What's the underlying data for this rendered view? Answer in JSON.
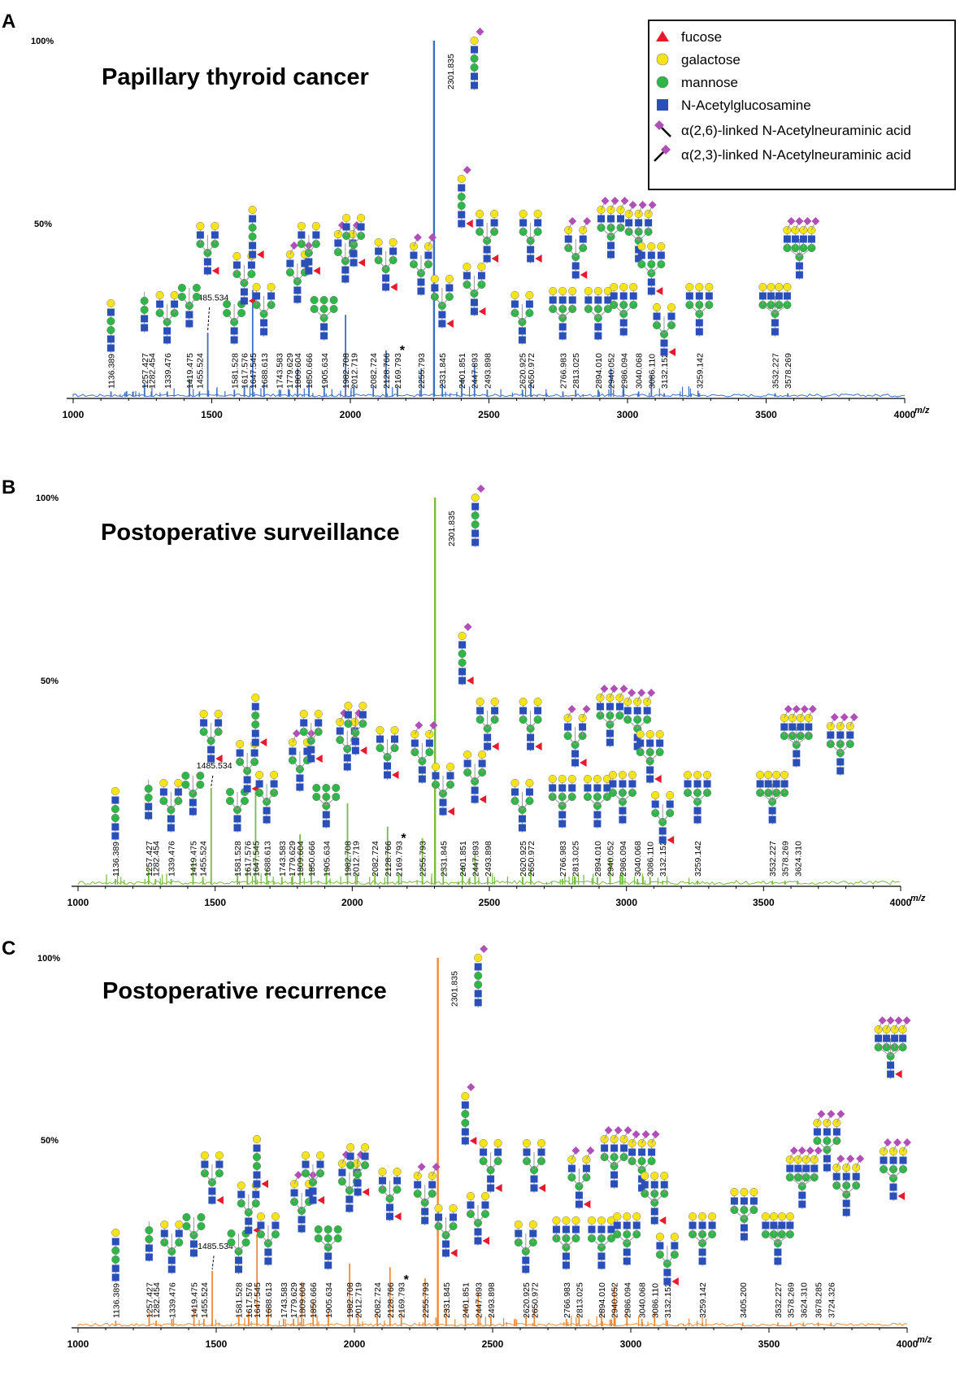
{
  "legend": {
    "items": [
      {
        "shape": "triangle",
        "color": "#e8192c",
        "label": "fucose"
      },
      {
        "shape": "circle",
        "color": "#f7e418",
        "label": "galactose"
      },
      {
        "shape": "circle",
        "color": "#2fb548",
        "label": "mannose"
      },
      {
        "shape": "square",
        "color": "#2b4fb8",
        "label": "N-Acetylglucosamine"
      },
      {
        "shape": "diamond26",
        "color": "#b14fb8",
        "label": "α(2,6)-linked N-Acetylneuraminic acid"
      },
      {
        "shape": "diamond23",
        "color": "#b14fb8",
        "label": "α(2,3)-linked N-Acetylneuraminic acid"
      }
    ]
  },
  "colors": {
    "panel_a": "#3d6fc4",
    "panel_b": "#76bd3f",
    "panel_c": "#f08a36",
    "fucose": "#e8192c",
    "galactose": "#f7e418",
    "mannose": "#2fb548",
    "glcnac": "#2b4fb8",
    "neuac": "#b14fb8"
  },
  "chart_data": [
    {
      "type": "line",
      "panel": "A",
      "title": "Papillary thyroid cancer",
      "xlabel": "m/z",
      "ylabel": "",
      "xlim": [
        1000,
        4000
      ],
      "ylim": [
        0,
        100
      ],
      "x_ticks": [
        "1000",
        "1500",
        "2000",
        "2500",
        "3000",
        "3500",
        "4000"
      ],
      "y_ticks": [
        "100%",
        "50%"
      ],
      "peaks": [
        {
          "mz": "1136.389",
          "x": 1136.389,
          "y": 1.5
        },
        {
          "mz": "1257.427",
          "x": 1257.427,
          "y": 4
        },
        {
          "mz": "1282.454",
          "x": 1282.454,
          "y": 1.5
        },
        {
          "mz": "1339.476",
          "x": 1339.476,
          "y": 1.5
        },
        {
          "mz": "1419.475",
          "x": 1419.475,
          "y": 5
        },
        {
          "mz": "1455.524",
          "x": 1455.524,
          "y": 1.5
        },
        {
          "mz": "1485.534",
          "x": 1485.534,
          "y": 18
        },
        {
          "mz": "1581.528",
          "x": 1581.528,
          "y": 2
        },
        {
          "mz": "1617.576",
          "x": 1617.576,
          "y": 3
        },
        {
          "mz": "1647.545",
          "x": 1647.545,
          "y": 30
        },
        {
          "mz": "1688.613",
          "x": 1688.613,
          "y": 4
        },
        {
          "mz": "1743.583",
          "x": 1743.583,
          "y": 2
        },
        {
          "mz": "1779.629",
          "x": 1779.629,
          "y": 2
        },
        {
          "mz": "1809.604",
          "x": 1809.604,
          "y": 8
        },
        {
          "mz": "1850.666",
          "x": 1850.666,
          "y": 4
        },
        {
          "mz": "1905.634",
          "x": 1905.634,
          "y": 3
        },
        {
          "mz": "1982.708",
          "x": 1982.708,
          "y": 23
        },
        {
          "mz": "2012.719",
          "x": 2012.719,
          "y": 3
        },
        {
          "mz": "2082.724",
          "x": 2082.724,
          "y": 3
        },
        {
          "mz": "2128.766",
          "x": 2128.766,
          "y": 13
        },
        {
          "mz": "2169.793",
          "x": 2169.793,
          "y": 3
        },
        {
          "mz": "2255.793",
          "x": 2255.793,
          "y": 8
        },
        {
          "mz": "2301.835",
          "x": 2301.835,
          "y": 100
        },
        {
          "mz": "2331.845",
          "x": 2331.845,
          "y": 4
        },
        {
          "mz": "2401.851",
          "x": 2401.851,
          "y": 5
        },
        {
          "mz": "2447.893",
          "x": 2447.893,
          "y": 9
        },
        {
          "mz": "2493.898",
          "x": 2493.898,
          "y": 2
        },
        {
          "mz": "2620.925",
          "x": 2620.925,
          "y": 2
        },
        {
          "mz": "2650.972",
          "x": 2650.972,
          "y": 4
        },
        {
          "mz": "2766.983",
          "x": 2766.983,
          "y": 1.5
        },
        {
          "mz": "2813.025",
          "x": 2813.025,
          "y": 2
        },
        {
          "mz": "2894.010",
          "x": 2894.01,
          "y": 2
        },
        {
          "mz": "2940.052",
          "x": 2940.052,
          "y": 8
        },
        {
          "mz": "2986.094",
          "x": 2986.094,
          "y": 3
        },
        {
          "mz": "3040.068",
          "x": 3040.068,
          "y": 1.5
        },
        {
          "mz": "3086.110",
          "x": 3086.11,
          "y": 6
        },
        {
          "mz": "3132.152",
          "x": 3132.152,
          "y": 1
        },
        {
          "mz": "3259.142",
          "x": 3259.142,
          "y": 1
        },
        {
          "mz": "3532.227",
          "x": 3532.227,
          "y": 1
        },
        {
          "mz": "3578.269",
          "x": 3578.269,
          "y": 1
        }
      ],
      "annotations": [
        {
          "text": "*",
          "x": 2190
        }
      ]
    },
    {
      "type": "line",
      "panel": "B",
      "title": "Postoperative surveillance",
      "xlabel": "m/z",
      "ylabel": "",
      "xlim": [
        1000,
        4000
      ],
      "ylim": [
        0,
        100
      ],
      "x_ticks": [
        "1000",
        "1500",
        "2000",
        "2500",
        "3000",
        "3500",
        "4000"
      ],
      "y_ticks": [
        "100%",
        "50%"
      ],
      "peaks": [
        {
          "mz": "1136.389",
          "x": 1136.389,
          "y": 1.5
        },
        {
          "mz": "1257.427",
          "x": 1257.427,
          "y": 4
        },
        {
          "mz": "1282.454",
          "x": 1282.454,
          "y": 1.5
        },
        {
          "mz": "1339.476",
          "x": 1339.476,
          "y": 1.5
        },
        {
          "mz": "1419.475",
          "x": 1419.475,
          "y": 6
        },
        {
          "mz": "1455.524",
          "x": 1455.524,
          "y": 2
        },
        {
          "mz": "1485.534",
          "x": 1485.534,
          "y": 25
        },
        {
          "mz": "1581.528",
          "x": 1581.528,
          "y": 3
        },
        {
          "mz": "1617.576",
          "x": 1617.576,
          "y": 4
        },
        {
          "mz": "1647.545",
          "x": 1647.545,
          "y": 24
        },
        {
          "mz": "1688.613",
          "x": 1688.613,
          "y": 4
        },
        {
          "mz": "1743.583",
          "x": 1743.583,
          "y": 2
        },
        {
          "mz": "1779.629",
          "x": 1779.629,
          "y": 2
        },
        {
          "mz": "1809.604",
          "x": 1809.604,
          "y": 13
        },
        {
          "mz": "1850.666",
          "x": 1850.666,
          "y": 5
        },
        {
          "mz": "1905.634",
          "x": 1905.634,
          "y": 4
        },
        {
          "mz": "1982.708",
          "x": 1982.708,
          "y": 21
        },
        {
          "mz": "2012.719",
          "x": 2012.719,
          "y": 3
        },
        {
          "mz": "2082.724",
          "x": 2082.724,
          "y": 3
        },
        {
          "mz": "2128.766",
          "x": 2128.766,
          "y": 15
        },
        {
          "mz": "2169.793",
          "x": 2169.793,
          "y": 3
        },
        {
          "mz": "2255.793",
          "x": 2255.793,
          "y": 12
        },
        {
          "mz": "2301.835",
          "x": 2301.835,
          "y": 100
        },
        {
          "mz": "2331.845",
          "x": 2331.845,
          "y": 4
        },
        {
          "mz": "2401.851",
          "x": 2401.851,
          "y": 5
        },
        {
          "mz": "2447.893",
          "x": 2447.893,
          "y": 8
        },
        {
          "mz": "2493.898",
          "x": 2493.898,
          "y": 2
        },
        {
          "mz": "2620.925",
          "x": 2620.925,
          "y": 2
        },
        {
          "mz": "2650.972",
          "x": 2650.972,
          "y": 4
        },
        {
          "mz": "2766.983",
          "x": 2766.983,
          "y": 1.5
        },
        {
          "mz": "2813.025",
          "x": 2813.025,
          "y": 2
        },
        {
          "mz": "2894.010",
          "x": 2894.01,
          "y": 2
        },
        {
          "mz": "2940.052",
          "x": 2940.052,
          "y": 7
        },
        {
          "mz": "2986.094",
          "x": 2986.094,
          "y": 3
        },
        {
          "mz": "3040.068",
          "x": 3040.068,
          "y": 1.5
        },
        {
          "mz": "3086.110",
          "x": 3086.11,
          "y": 2
        },
        {
          "mz": "3132.152",
          "x": 3132.152,
          "y": 1
        },
        {
          "mz": "3259.142",
          "x": 3259.142,
          "y": 1
        },
        {
          "mz": "3532.227",
          "x": 3532.227,
          "y": 1
        },
        {
          "mz": "3578.269",
          "x": 3578.269,
          "y": 1
        },
        {
          "mz": "3624.310",
          "x": 3624.31,
          "y": 1
        }
      ],
      "annotations": [
        {
          "text": "*",
          "x": 2190
        }
      ]
    },
    {
      "type": "line",
      "panel": "C",
      "title": "Postoperative recurrence",
      "xlabel": "m/z",
      "ylabel": "",
      "xlim": [
        1000,
        4000
      ],
      "ylim": [
        0,
        100
      ],
      "x_ticks": [
        "1000",
        "1500",
        "2000",
        "2500",
        "3000",
        "3500",
        "4000"
      ],
      "y_ticks": [
        "100%",
        "50%"
      ],
      "peaks": [
        {
          "mz": "1136.389",
          "x": 1136.389,
          "y": 1.5
        },
        {
          "mz": "1257.427",
          "x": 1257.427,
          "y": 4
        },
        {
          "mz": "1282.454",
          "x": 1282.454,
          "y": 1.5
        },
        {
          "mz": "1339.476",
          "x": 1339.476,
          "y": 2
        },
        {
          "mz": "1419.475",
          "x": 1419.475,
          "y": 5
        },
        {
          "mz": "1455.524",
          "x": 1455.524,
          "y": 2
        },
        {
          "mz": "1485.534",
          "x": 1485.534,
          "y": 15
        },
        {
          "mz": "1581.528",
          "x": 1581.528,
          "y": 3
        },
        {
          "mz": "1617.576",
          "x": 1617.576,
          "y": 4
        },
        {
          "mz": "1647.545",
          "x": 1647.545,
          "y": 25
        },
        {
          "mz": "1688.613",
          "x": 1688.613,
          "y": 5
        },
        {
          "mz": "1743.583",
          "x": 1743.583,
          "y": 2
        },
        {
          "mz": "1779.629",
          "x": 1779.629,
          "y": 2
        },
        {
          "mz": "1809.604",
          "x": 1809.604,
          "y": 12
        },
        {
          "mz": "1850.666",
          "x": 1850.666,
          "y": 7
        },
        {
          "mz": "1905.634",
          "x": 1905.634,
          "y": 4
        },
        {
          "mz": "1982.708",
          "x": 1982.708,
          "y": 17
        },
        {
          "mz": "2012.719",
          "x": 2012.719,
          "y": 4
        },
        {
          "mz": "2082.724",
          "x": 2082.724,
          "y": 4
        },
        {
          "mz": "2128.766",
          "x": 2128.766,
          "y": 16
        },
        {
          "mz": "2169.793",
          "x": 2169.793,
          "y": 4
        },
        {
          "mz": "2255.793",
          "x": 2255.793,
          "y": 13
        },
        {
          "mz": "2301.835",
          "x": 2301.835,
          "y": 100
        },
        {
          "mz": "2331.845",
          "x": 2331.845,
          "y": 5
        },
        {
          "mz": "2401.851",
          "x": 2401.851,
          "y": 6
        },
        {
          "mz": "2447.893",
          "x": 2447.893,
          "y": 9
        },
        {
          "mz": "2493.898",
          "x": 2493.898,
          "y": 3
        },
        {
          "mz": "2620.925",
          "x": 2620.925,
          "y": 3
        },
        {
          "mz": "2650.972",
          "x": 2650.972,
          "y": 5
        },
        {
          "mz": "2766.983",
          "x": 2766.983,
          "y": 2
        },
        {
          "mz": "2813.025",
          "x": 2813.025,
          "y": 3
        },
        {
          "mz": "2894.010",
          "x": 2894.01,
          "y": 4
        },
        {
          "mz": "2940.052",
          "x": 2940.052,
          "y": 11
        },
        {
          "mz": "2986.094",
          "x": 2986.094,
          "y": 4
        },
        {
          "mz": "3040.068",
          "x": 3040.068,
          "y": 2
        },
        {
          "mz": "3086.110",
          "x": 3086.11,
          "y": 4
        },
        {
          "mz": "3132.152",
          "x": 3132.152,
          "y": 1.5
        },
        {
          "mz": "3259.142",
          "x": 3259.142,
          "y": 1
        },
        {
          "mz": "3405.200",
          "x": 3405.2,
          "y": 1
        },
        {
          "mz": "3532.227",
          "x": 3532.227,
          "y": 1
        },
        {
          "mz": "3578.269",
          "x": 3578.269,
          "y": 1
        },
        {
          "mz": "3624.310",
          "x": 3624.31,
          "y": 1
        },
        {
          "mz": "3678.285",
          "x": 3678.285,
          "y": 1
        },
        {
          "mz": "3724.326",
          "x": 3724.326,
          "y": 1
        }
      ],
      "annotations": [
        {
          "text": "*",
          "x": 2190
        }
      ]
    }
  ]
}
